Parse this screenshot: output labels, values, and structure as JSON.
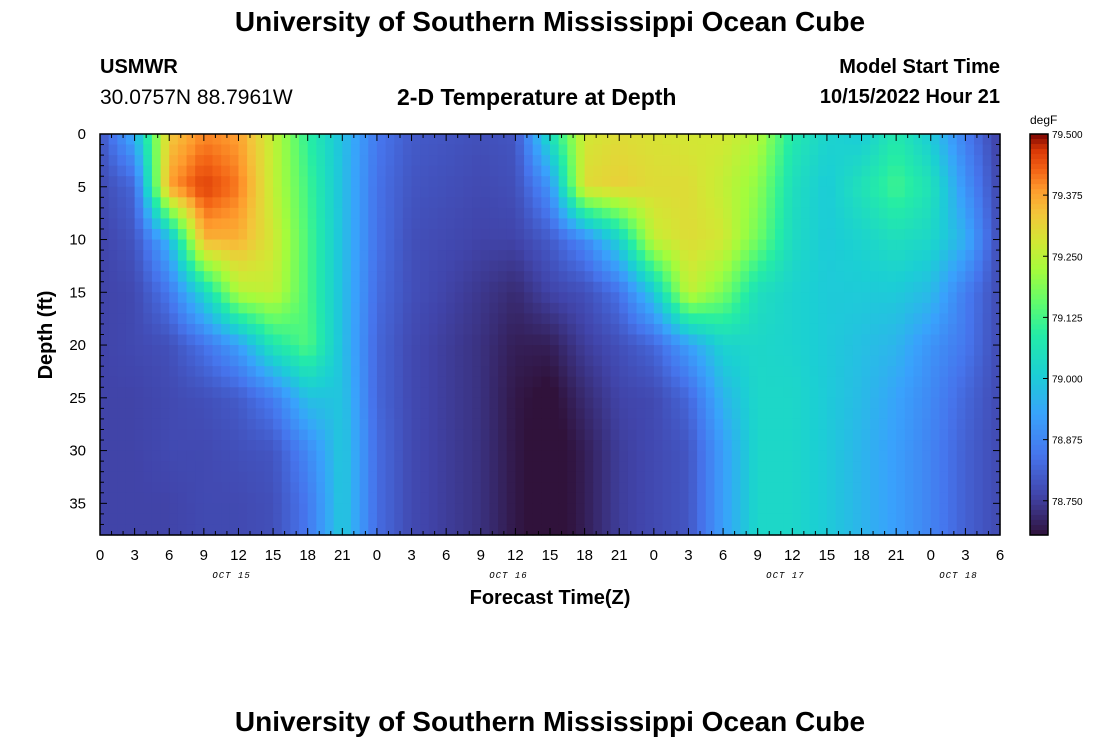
{
  "header": {
    "title": "University of Southern Mississippi Ocean Cube",
    "station": "USMWR",
    "coords": "30.0757N  88.7961W",
    "plot_title": "2-D Temperature at Depth",
    "start_label": "Model Start Time",
    "start_value": "10/15/2022 Hour 21"
  },
  "footer": {
    "title": "University of Southern Mississippi Ocean Cube"
  },
  "chart_data": {
    "type": "heatmap",
    "xlabel": "Forecast Time(Z)",
    "ylabel": "Depth (ft)",
    "x_tick_labels": [
      "0",
      "3",
      "6",
      "9",
      "12",
      "15",
      "18",
      "21",
      "0",
      "3",
      "6",
      "9",
      "12",
      "15",
      "18",
      "21",
      "0",
      "3",
      "6",
      "9",
      "12",
      "15",
      "18",
      "21",
      "0",
      "3",
      "6"
    ],
    "x_date_labels": [
      {
        "text": "OCT 15",
        "index": 3.8
      },
      {
        "text": "OCT 16",
        "index": 11.8
      },
      {
        "text": "OCT 17",
        "index": 19.8
      },
      {
        "text": "OCT 18",
        "index": 24.8
      }
    ],
    "y_ticks": [
      0,
      5,
      10,
      15,
      20,
      25,
      30,
      35
    ],
    "ylim": [
      0,
      38
    ],
    "colorbar": {
      "unit": "degF",
      "min": 78.68,
      "max": 79.5,
      "labels": [
        "79.500",
        "79.375",
        "79.250",
        "79.125",
        "79.000",
        "78.875",
        "78.750"
      ]
    },
    "depths": [
      0,
      5,
      10,
      15,
      20,
      25,
      30,
      35
    ],
    "times": [
      0,
      1,
      2,
      3,
      4,
      5,
      6,
      7,
      8,
      9,
      10,
      11,
      12,
      13,
      14,
      15,
      16,
      17,
      18,
      19,
      20,
      21,
      22,
      23,
      24,
      25,
      26
    ],
    "values": [
      [
        78.79,
        78.95,
        79.33,
        79.4,
        79.38,
        79.26,
        79.1,
        78.98,
        78.85,
        78.8,
        78.79,
        78.78,
        78.79,
        79.05,
        79.28,
        79.3,
        79.29,
        79.28,
        79.28,
        79.24,
        79.08,
        79.02,
        79.0,
        79.08,
        79.0,
        78.86,
        78.75
      ],
      [
        78.77,
        78.82,
        79.38,
        79.46,
        79.41,
        79.26,
        79.12,
        78.98,
        78.84,
        78.79,
        78.78,
        78.77,
        78.78,
        78.9,
        79.3,
        79.32,
        79.3,
        79.3,
        79.26,
        79.2,
        79.05,
        79.0,
        79.06,
        79.12,
        79.06,
        78.9,
        78.76
      ],
      [
        78.76,
        78.79,
        78.96,
        79.36,
        79.36,
        79.28,
        79.13,
        78.98,
        78.84,
        78.78,
        78.77,
        78.76,
        78.76,
        78.8,
        78.88,
        79.02,
        79.26,
        79.3,
        79.28,
        79.17,
        79.04,
        79.0,
        79.02,
        79.05,
        79.03,
        78.95,
        78.77
      ],
      [
        78.76,
        78.77,
        78.85,
        79.03,
        79.24,
        79.26,
        79.13,
        78.98,
        78.83,
        78.78,
        78.76,
        78.74,
        78.72,
        78.76,
        78.78,
        78.84,
        79.0,
        79.26,
        79.18,
        79.05,
        79.02,
        79.0,
        79.0,
        79.0,
        78.97,
        78.86,
        78.77
      ],
      [
        78.76,
        78.77,
        78.78,
        78.84,
        78.92,
        79.07,
        79.14,
        78.98,
        78.82,
        78.77,
        78.75,
        78.73,
        78.7,
        78.7,
        78.75,
        78.78,
        78.82,
        78.92,
        79.02,
        79.03,
        79.02,
        79.0,
        78.98,
        78.96,
        78.9,
        78.85,
        78.77
      ],
      [
        78.76,
        78.76,
        78.77,
        78.78,
        78.8,
        78.86,
        78.98,
        78.99,
        78.82,
        78.77,
        78.75,
        78.73,
        78.69,
        78.67,
        78.72,
        78.76,
        78.77,
        78.82,
        78.96,
        79.03,
        79.03,
        79.0,
        78.97,
        78.93,
        78.88,
        78.82,
        78.77
      ],
      [
        78.76,
        78.76,
        78.77,
        78.77,
        78.78,
        78.79,
        78.88,
        79.0,
        78.83,
        78.77,
        78.75,
        78.73,
        78.69,
        78.66,
        78.7,
        78.75,
        78.77,
        78.79,
        78.92,
        79.03,
        79.03,
        79.0,
        78.96,
        78.92,
        78.87,
        78.81,
        78.77
      ],
      [
        78.76,
        78.76,
        78.76,
        78.77,
        78.77,
        78.78,
        78.85,
        79.0,
        78.83,
        78.77,
        78.75,
        78.73,
        78.69,
        78.66,
        78.7,
        78.75,
        78.77,
        78.79,
        78.92,
        79.03,
        79.03,
        79.0,
        78.96,
        78.92,
        78.87,
        78.81,
        78.77
      ]
    ]
  }
}
